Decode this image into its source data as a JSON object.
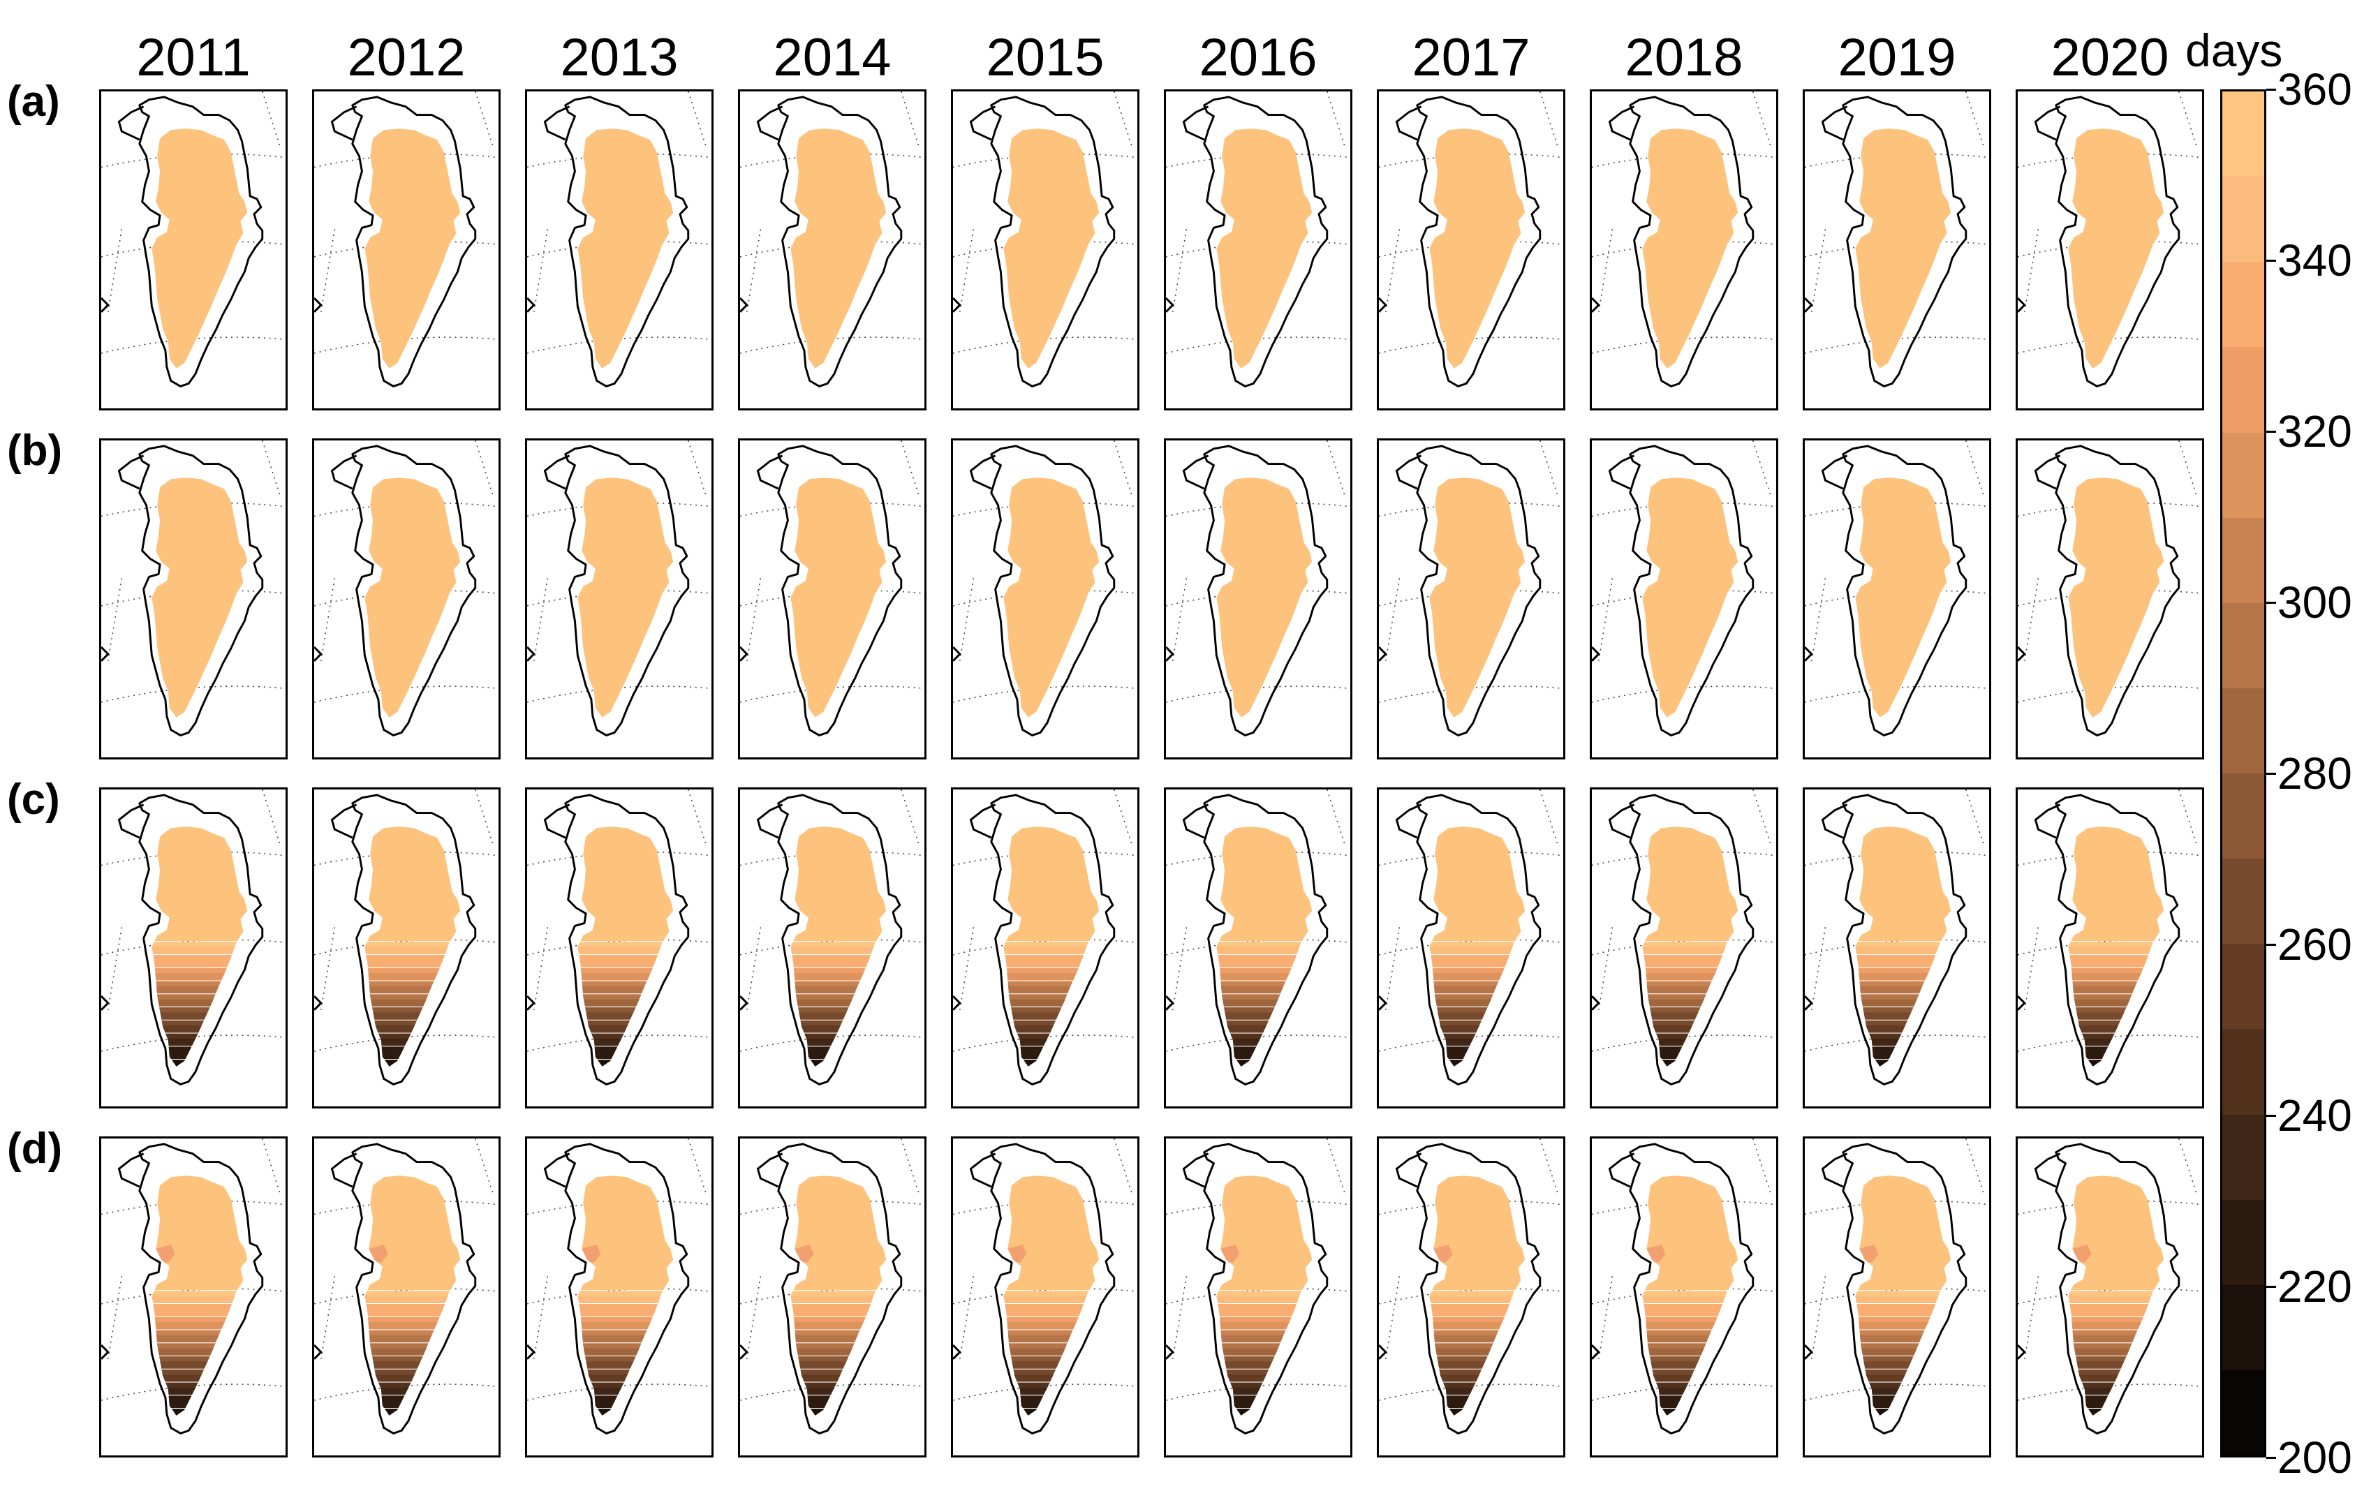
{
  "figure": {
    "years": [
      "2011",
      "2012",
      "2013",
      "2014",
      "2015",
      "2016",
      "2017",
      "2018",
      "2019",
      "2020"
    ],
    "rows": [
      {
        "label": "(a)",
        "pattern": "uniform"
      },
      {
        "label": "(b)",
        "pattern": "uniform"
      },
      {
        "label": "(c)",
        "pattern": "south_gradient"
      },
      {
        "label": "(d)",
        "pattern": "south_gradient_west_patch"
      }
    ],
    "colorbar": {
      "unit": "days",
      "min": 200,
      "max": 360,
      "step": 10,
      "ticks": [
        "360",
        "340",
        "320",
        "300",
        "280",
        "260",
        "240",
        "220",
        "200"
      ],
      "colors": [
        "#0a0604",
        "#1c100a",
        "#2e1b10",
        "#402616",
        "#52311d",
        "#643c24",
        "#784a2d",
        "#8c5836",
        "#a0673f",
        "#b57548",
        "#c98352",
        "#de925c",
        "#ef9f66",
        "#f9ad70",
        "#fbbb7c",
        "#fdc580"
      ]
    },
    "ice_color": "#fdc27c"
  }
}
